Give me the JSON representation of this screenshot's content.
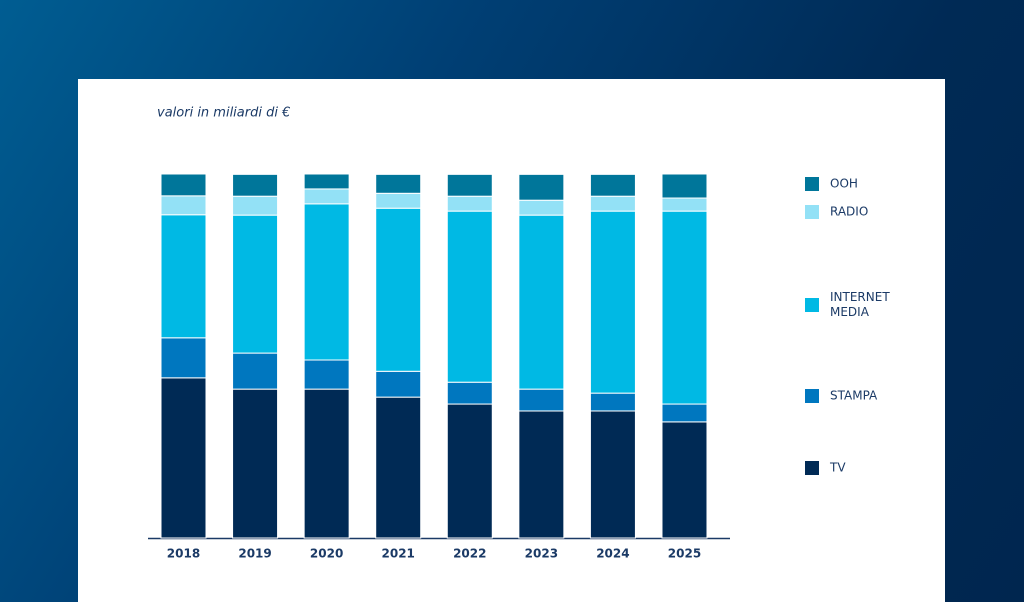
{
  "chart_data": {
    "type": "bar",
    "stacked": true,
    "subtitle": "valori in miliardi di €",
    "categories": [
      "2018",
      "2019",
      "2020",
      "2021",
      "2022",
      "2023",
      "2024",
      "2025"
    ],
    "ylim": [
      0,
      100
    ],
    "series": [
      {
        "name": "TV",
        "color": "#002a55",
        "values": [
          44.0,
          40.9,
          40.9,
          38.7,
          36.8,
          34.9,
          34.9,
          31.9
        ]
      },
      {
        "name": "STAMPA",
        "color": "#0077bf",
        "values": [
          11.0,
          9.9,
          8.0,
          7.1,
          6.0,
          6.0,
          4.9,
          4.9
        ]
      },
      {
        "name": "INTERNET MEDIA",
        "color": "#00b9e4",
        "values": [
          33.8,
          37.9,
          42.9,
          44.8,
          47.0,
          47.8,
          50.0,
          53.0
        ]
      },
      {
        "name": "RADIO",
        "color": "#93e1f6",
        "values": [
          5.2,
          5.2,
          4.1,
          4.1,
          4.1,
          4.1,
          4.1,
          3.6
        ]
      },
      {
        "name": "OOH",
        "color": "#00769a",
        "values": [
          6.0,
          6.0,
          4.1,
          5.2,
          6.0,
          7.1,
          6.0,
          6.6
        ]
      }
    ]
  }
}
